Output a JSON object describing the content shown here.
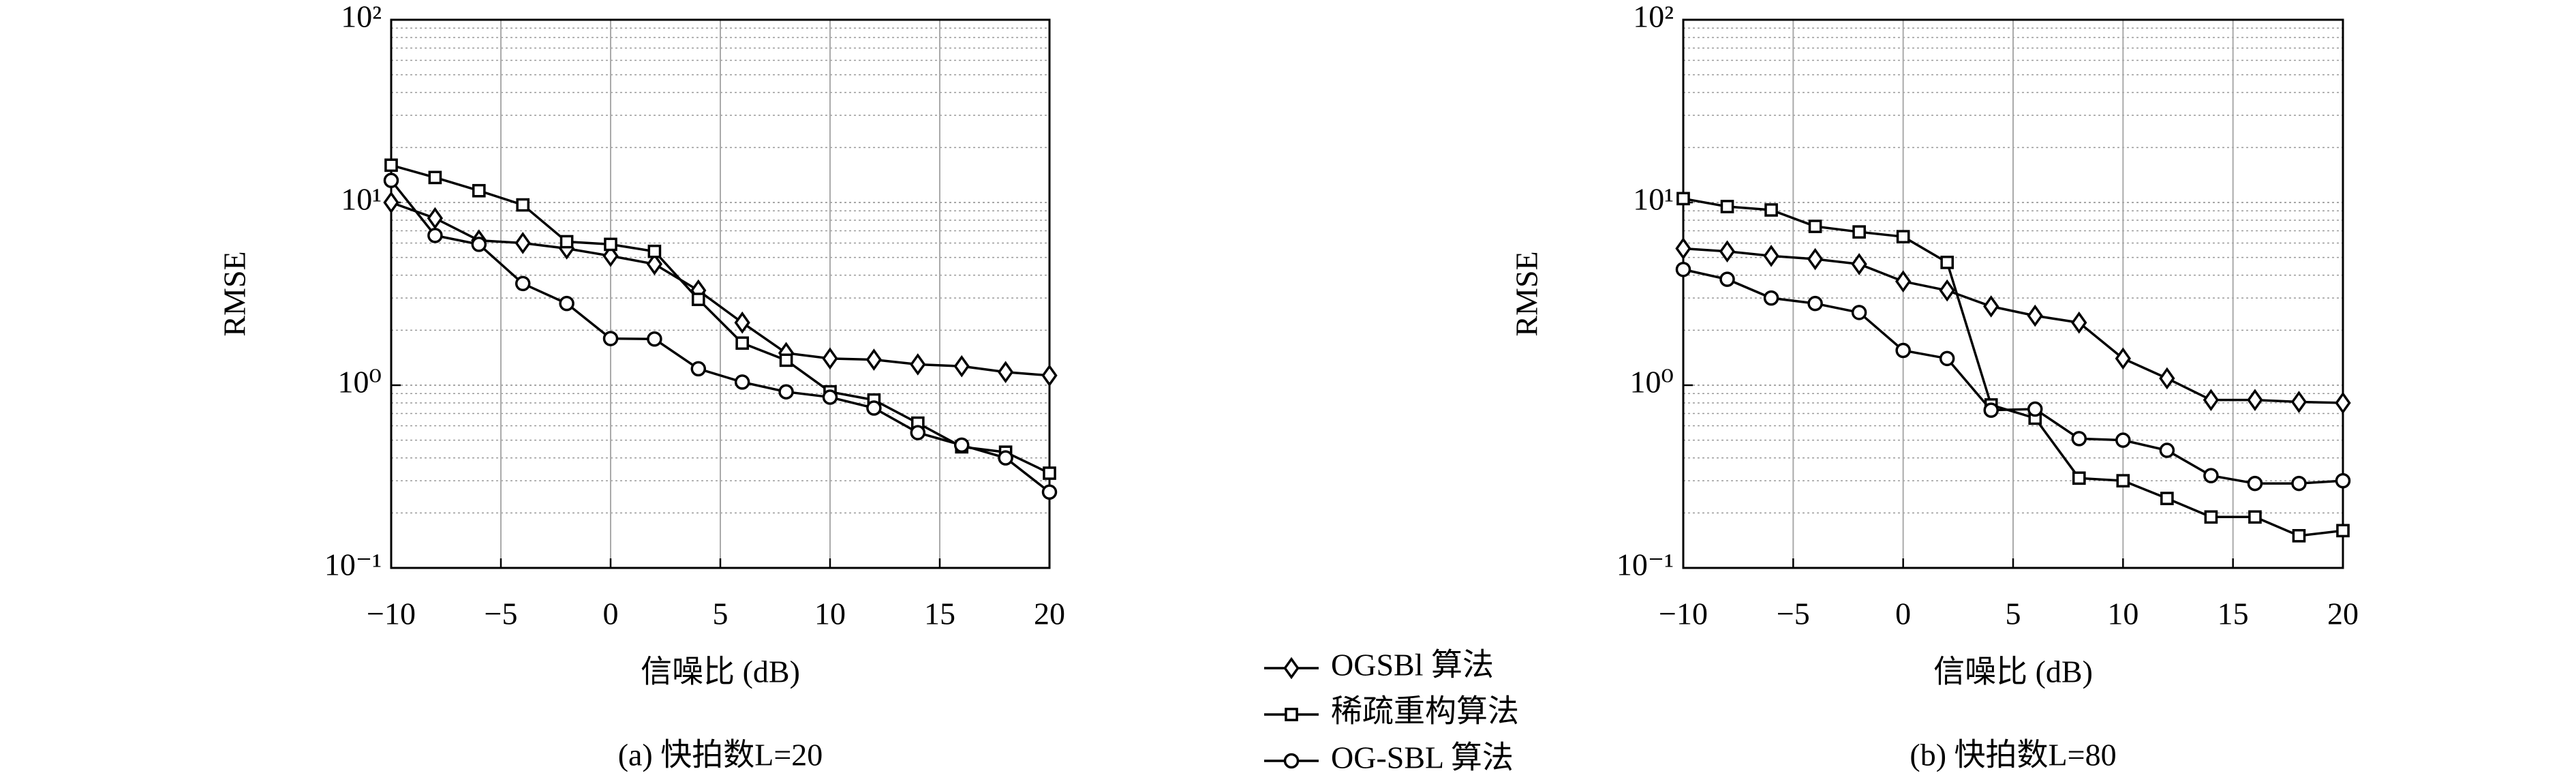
{
  "chart_data": [
    {
      "type": "line",
      "title": "(a) 快拍数L=20",
      "xlabel": "信噪比 (dB)",
      "ylabel": "RMSE",
      "yscale": "log",
      "grid": true,
      "x": [
        -10,
        -8,
        -6,
        -4,
        -2,
        0,
        2,
        4,
        6,
        8,
        10,
        12,
        14,
        16,
        18,
        20
      ],
      "xlim": [
        -10,
        20
      ],
      "xticks": [
        {
          "value": -10,
          "label": "−10"
        },
        {
          "value": -5,
          "label": "−5"
        },
        0,
        5,
        10,
        15,
        20
      ],
      "ylim": [
        0.1,
        100
      ],
      "yticks": [
        {
          "value": 0.1,
          "label": "10⁻¹"
        },
        {
          "value": 1,
          "label": "10⁰"
        },
        {
          "value": 10,
          "label": "10¹"
        },
        {
          "value": 100,
          "label": "10²"
        }
      ],
      "series": [
        {
          "name": "OGSBl 算法",
          "color": "#000000",
          "marker": "diamond",
          "values": [
            10.0,
            8.2,
            6.2,
            6.0,
            5.6,
            5.1,
            4.6,
            3.3,
            2.2,
            1.5,
            1.4,
            1.38,
            1.3,
            1.27,
            1.18,
            1.13
          ]
        },
        {
          "name": "稀疏重构算法",
          "color": "#000000",
          "marker": "square",
          "values": [
            16,
            13.7,
            11.6,
            9.7,
            6.1,
            5.9,
            5.4,
            2.95,
            1.7,
            1.37,
            0.92,
            0.83,
            0.62,
            0.46,
            0.43,
            0.33
          ]
        },
        {
          "name": "OG-SBL 算法",
          "color": "#000000",
          "marker": "circle",
          "values": [
            13.2,
            6.6,
            5.9,
            3.6,
            2.8,
            1.8,
            1.79,
            1.23,
            1.04,
            0.92,
            0.86,
            0.75,
            0.55,
            0.47,
            0.4,
            0.26
          ]
        }
      ]
    },
    {
      "type": "line",
      "title": "(b) 快拍数L=80",
      "xlabel": "信噪比 (dB)",
      "ylabel": "RMSE",
      "yscale": "log",
      "grid": true,
      "x": [
        -10,
        -8,
        -6,
        -4,
        -2,
        0,
        2,
        4,
        6,
        8,
        10,
        12,
        14,
        16,
        18,
        20
      ],
      "xlim": [
        -10,
        20
      ],
      "xticks": [
        {
          "value": -10,
          "label": "−10"
        },
        {
          "value": -5,
          "label": "−5"
        },
        0,
        5,
        10,
        15,
        20
      ],
      "ylim": [
        0.1,
        100
      ],
      "yticks": [
        {
          "value": 0.1,
          "label": "10⁻¹"
        },
        {
          "value": 1,
          "label": "10⁰"
        },
        {
          "value": 10,
          "label": "10¹"
        },
        {
          "value": 100,
          "label": "10²"
        }
      ],
      "series": [
        {
          "color": "#000000",
          "marker": "diamond",
          "values": [
            5.6,
            5.4,
            5.1,
            4.9,
            4.6,
            3.7,
            3.3,
            2.7,
            2.4,
            2.2,
            1.4,
            1.09,
            0.83,
            0.83,
            0.81,
            0.8
          ]
        },
        {
          "color": "#000000",
          "marker": "square",
          "values": [
            10.5,
            9.5,
            9.1,
            7.4,
            6.9,
            6.5,
            4.7,
            0.78,
            0.66,
            0.31,
            0.3,
            0.24,
            0.19,
            0.19,
            0.15,
            0.16
          ]
        },
        {
          "color": "#000000",
          "marker": "circle",
          "values": [
            4.3,
            3.8,
            3.0,
            2.8,
            2.5,
            1.55,
            1.4,
            0.73,
            0.74,
            0.51,
            0.5,
            0.44,
            0.32,
            0.29,
            0.29,
            0.3
          ]
        }
      ]
    }
  ]
}
